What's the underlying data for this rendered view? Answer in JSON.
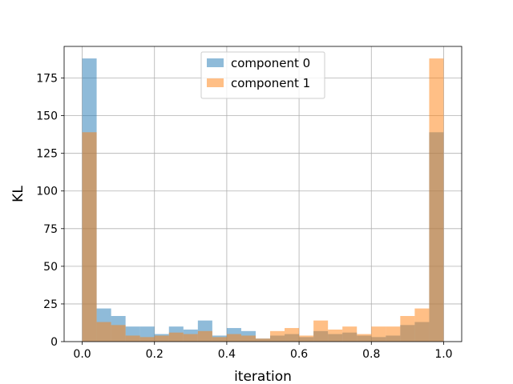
{
  "chart_data": {
    "type": "bar",
    "subtype": "overlapping-histogram",
    "xlabel": "iteration",
    "ylabel": "KL",
    "xlim": [
      -0.05,
      1.05
    ],
    "ylim": [
      0,
      196
    ],
    "xticks": [
      0.0,
      0.2,
      0.4,
      0.6,
      0.8,
      1.0
    ],
    "xtick_labels": [
      "0.0",
      "0.2",
      "0.4",
      "0.6",
      "0.8",
      "1.0"
    ],
    "yticks": [
      0,
      25,
      50,
      75,
      100,
      125,
      150,
      175
    ],
    "ytick_labels": [
      "0",
      "25",
      "50",
      "75",
      "100",
      "125",
      "150",
      "175"
    ],
    "grid": true,
    "legend_position": "top-center",
    "bin_edges": [
      0.0,
      0.04,
      0.08,
      0.12,
      0.16,
      0.2,
      0.24,
      0.28,
      0.32,
      0.36,
      0.4,
      0.44,
      0.48,
      0.52,
      0.56,
      0.6,
      0.64,
      0.68,
      0.72,
      0.76,
      0.8,
      0.84,
      0.88,
      0.92,
      0.96,
      1.0
    ],
    "series": [
      {
        "name": "component 0",
        "color": "#1f77b4",
        "opacity": 0.5,
        "values": [
          188,
          22,
          17,
          10,
          10,
          5,
          10,
          8,
          14,
          4,
          9,
          7,
          2,
          4,
          5,
          3,
          7,
          5,
          6,
          4,
          3,
          4,
          11,
          13,
          139
        ]
      },
      {
        "name": "component 1",
        "color": "#ff7f0e",
        "opacity": 0.5,
        "values": [
          139,
          13,
          11,
          4,
          3,
          4,
          6,
          5,
          7,
          3,
          5,
          4,
          2,
          7,
          9,
          4,
          14,
          8,
          10,
          5,
          10,
          10,
          17,
          22,
          188
        ]
      }
    ]
  }
}
